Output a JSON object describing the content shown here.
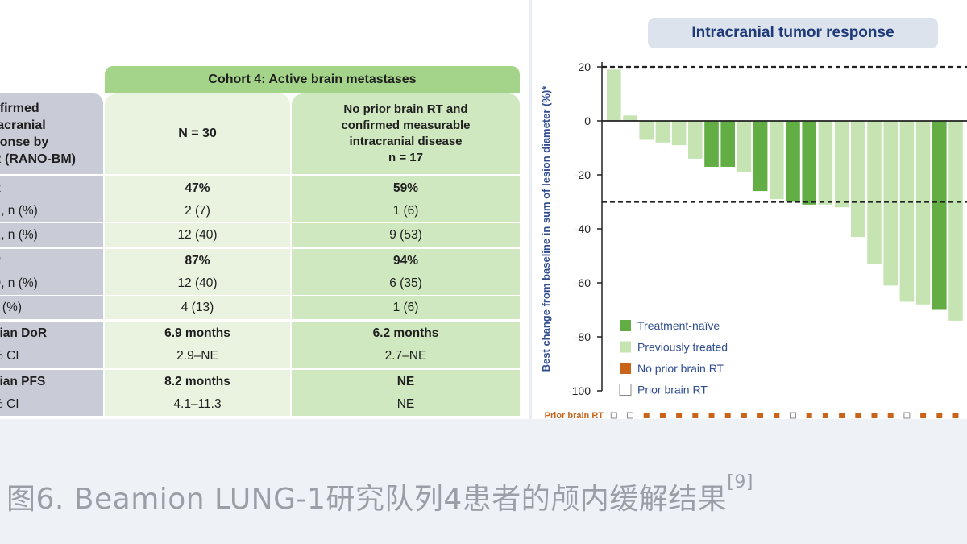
{
  "table": {
    "cohort_header": "Cohort 4: Active brain metastases",
    "label_header": "nfirmed\nracranial\nponse by\nR (RANO-BM)",
    "col1_header": "N = 30",
    "col2_header": "No prior brain RT and\nconfirmed measurable\nintracranial disease\nn = 17",
    "rows": [
      {
        "label": "R",
        "c1": "47%",
        "c2": "59%",
        "bold": true,
        "sep": true
      },
      {
        "label": "R, n (%)",
        "c1": "2 (7)",
        "c2": "1 (6)",
        "bold": false,
        "sep": false
      },
      {
        "label": "R, n (%)",
        "c1": "12 (40)",
        "c2": "9 (53)",
        "bold": false,
        "sep": false
      },
      {
        "label": "R",
        "c1": "87%",
        "c2": "94%",
        "bold": true,
        "sep": true
      },
      {
        "label": "D, n (%)",
        "c1": "12 (40)",
        "c2": "6 (35)",
        "bold": false,
        "sep": false
      },
      {
        "label": "n (%)",
        "c1": "4 (13)",
        "c2": "1 (6)",
        "bold": false,
        "sep": false
      },
      {
        "label": "dian DoR",
        "c1": "6.9 months",
        "c2": "6.2 months",
        "bold": true,
        "sep": true
      },
      {
        "label": "% CI",
        "c1": "2.9–NE",
        "c2": "2.7–NE",
        "bold": false,
        "sep": false
      },
      {
        "label": "dian PFS",
        "c1": "8.2 months",
        "c2": "NE",
        "bold": true,
        "sep": true
      },
      {
        "label": "% CI",
        "c1": "4.1–11.3",
        "c2": "NE",
        "bold": false,
        "sep": false
      }
    ]
  },
  "chart_data": {
    "type": "bar",
    "title": "Intracranial tumor response",
    "ylabel": "Best change from baseline in sum of lesion diameter (%)*",
    "ylim": [
      -100,
      20
    ],
    "yticks": [
      20,
      0,
      -20,
      -40,
      -60,
      -80,
      -100
    ],
    "reference_lines": [
      20,
      -30
    ],
    "row_label": "Prior brain RT",
    "colors": {
      "treatment_naive": "#62ae45",
      "previously_treated": "#c5e4b2",
      "no_prior_brain_rt": "#c8651b",
      "prior_brain_rt": "#ffffff"
    },
    "legend": [
      {
        "key": "treatment_naive",
        "label": "Treatment-naïve"
      },
      {
        "key": "previously_treated",
        "label": "Previously treated"
      },
      {
        "key": "no_prior_brain_rt",
        "label": "No prior brain RT"
      },
      {
        "key": "prior_brain_rt",
        "label": "Prior brain RT"
      }
    ],
    "legend_position": "bottom-left",
    "bars": [
      {
        "value": 19,
        "group": "previously_treated",
        "prior_rt": true
      },
      {
        "value": 2,
        "group": "previously_treated",
        "prior_rt": true
      },
      {
        "value": -7,
        "group": "previously_treated",
        "prior_rt": false
      },
      {
        "value": -8,
        "group": "previously_treated",
        "prior_rt": false
      },
      {
        "value": -9,
        "group": "previously_treated",
        "prior_rt": false
      },
      {
        "value": -14,
        "group": "previously_treated",
        "prior_rt": false
      },
      {
        "value": -17,
        "group": "treatment_naive",
        "prior_rt": false
      },
      {
        "value": -17,
        "group": "treatment_naive",
        "prior_rt": false
      },
      {
        "value": -19,
        "group": "previously_treated",
        "prior_rt": false
      },
      {
        "value": -26,
        "group": "treatment_naive",
        "prior_rt": false
      },
      {
        "value": -29,
        "group": "previously_treated",
        "prior_rt": false
      },
      {
        "value": -30,
        "group": "treatment_naive",
        "prior_rt": true
      },
      {
        "value": -31,
        "group": "treatment_naive",
        "prior_rt": false
      },
      {
        "value": -31,
        "group": "previously_treated",
        "prior_rt": false
      },
      {
        "value": -32,
        "group": "previously_treated",
        "prior_rt": false
      },
      {
        "value": -43,
        "group": "previously_treated",
        "prior_rt": false
      },
      {
        "value": -53,
        "group": "previously_treated",
        "prior_rt": false
      },
      {
        "value": -61,
        "group": "previously_treated",
        "prior_rt": false
      },
      {
        "value": -67,
        "group": "previously_treated",
        "prior_rt": true
      },
      {
        "value": -68,
        "group": "previously_treated",
        "prior_rt": false
      },
      {
        "value": -70,
        "group": "treatment_naive",
        "prior_rt": false
      },
      {
        "value": -74,
        "group": "previously_treated",
        "prior_rt": false
      }
    ]
  },
  "caption": {
    "text": "图6. Beamion LUNG-1研究队列4患者的颅内缓解结果",
    "ref": "[9]"
  }
}
